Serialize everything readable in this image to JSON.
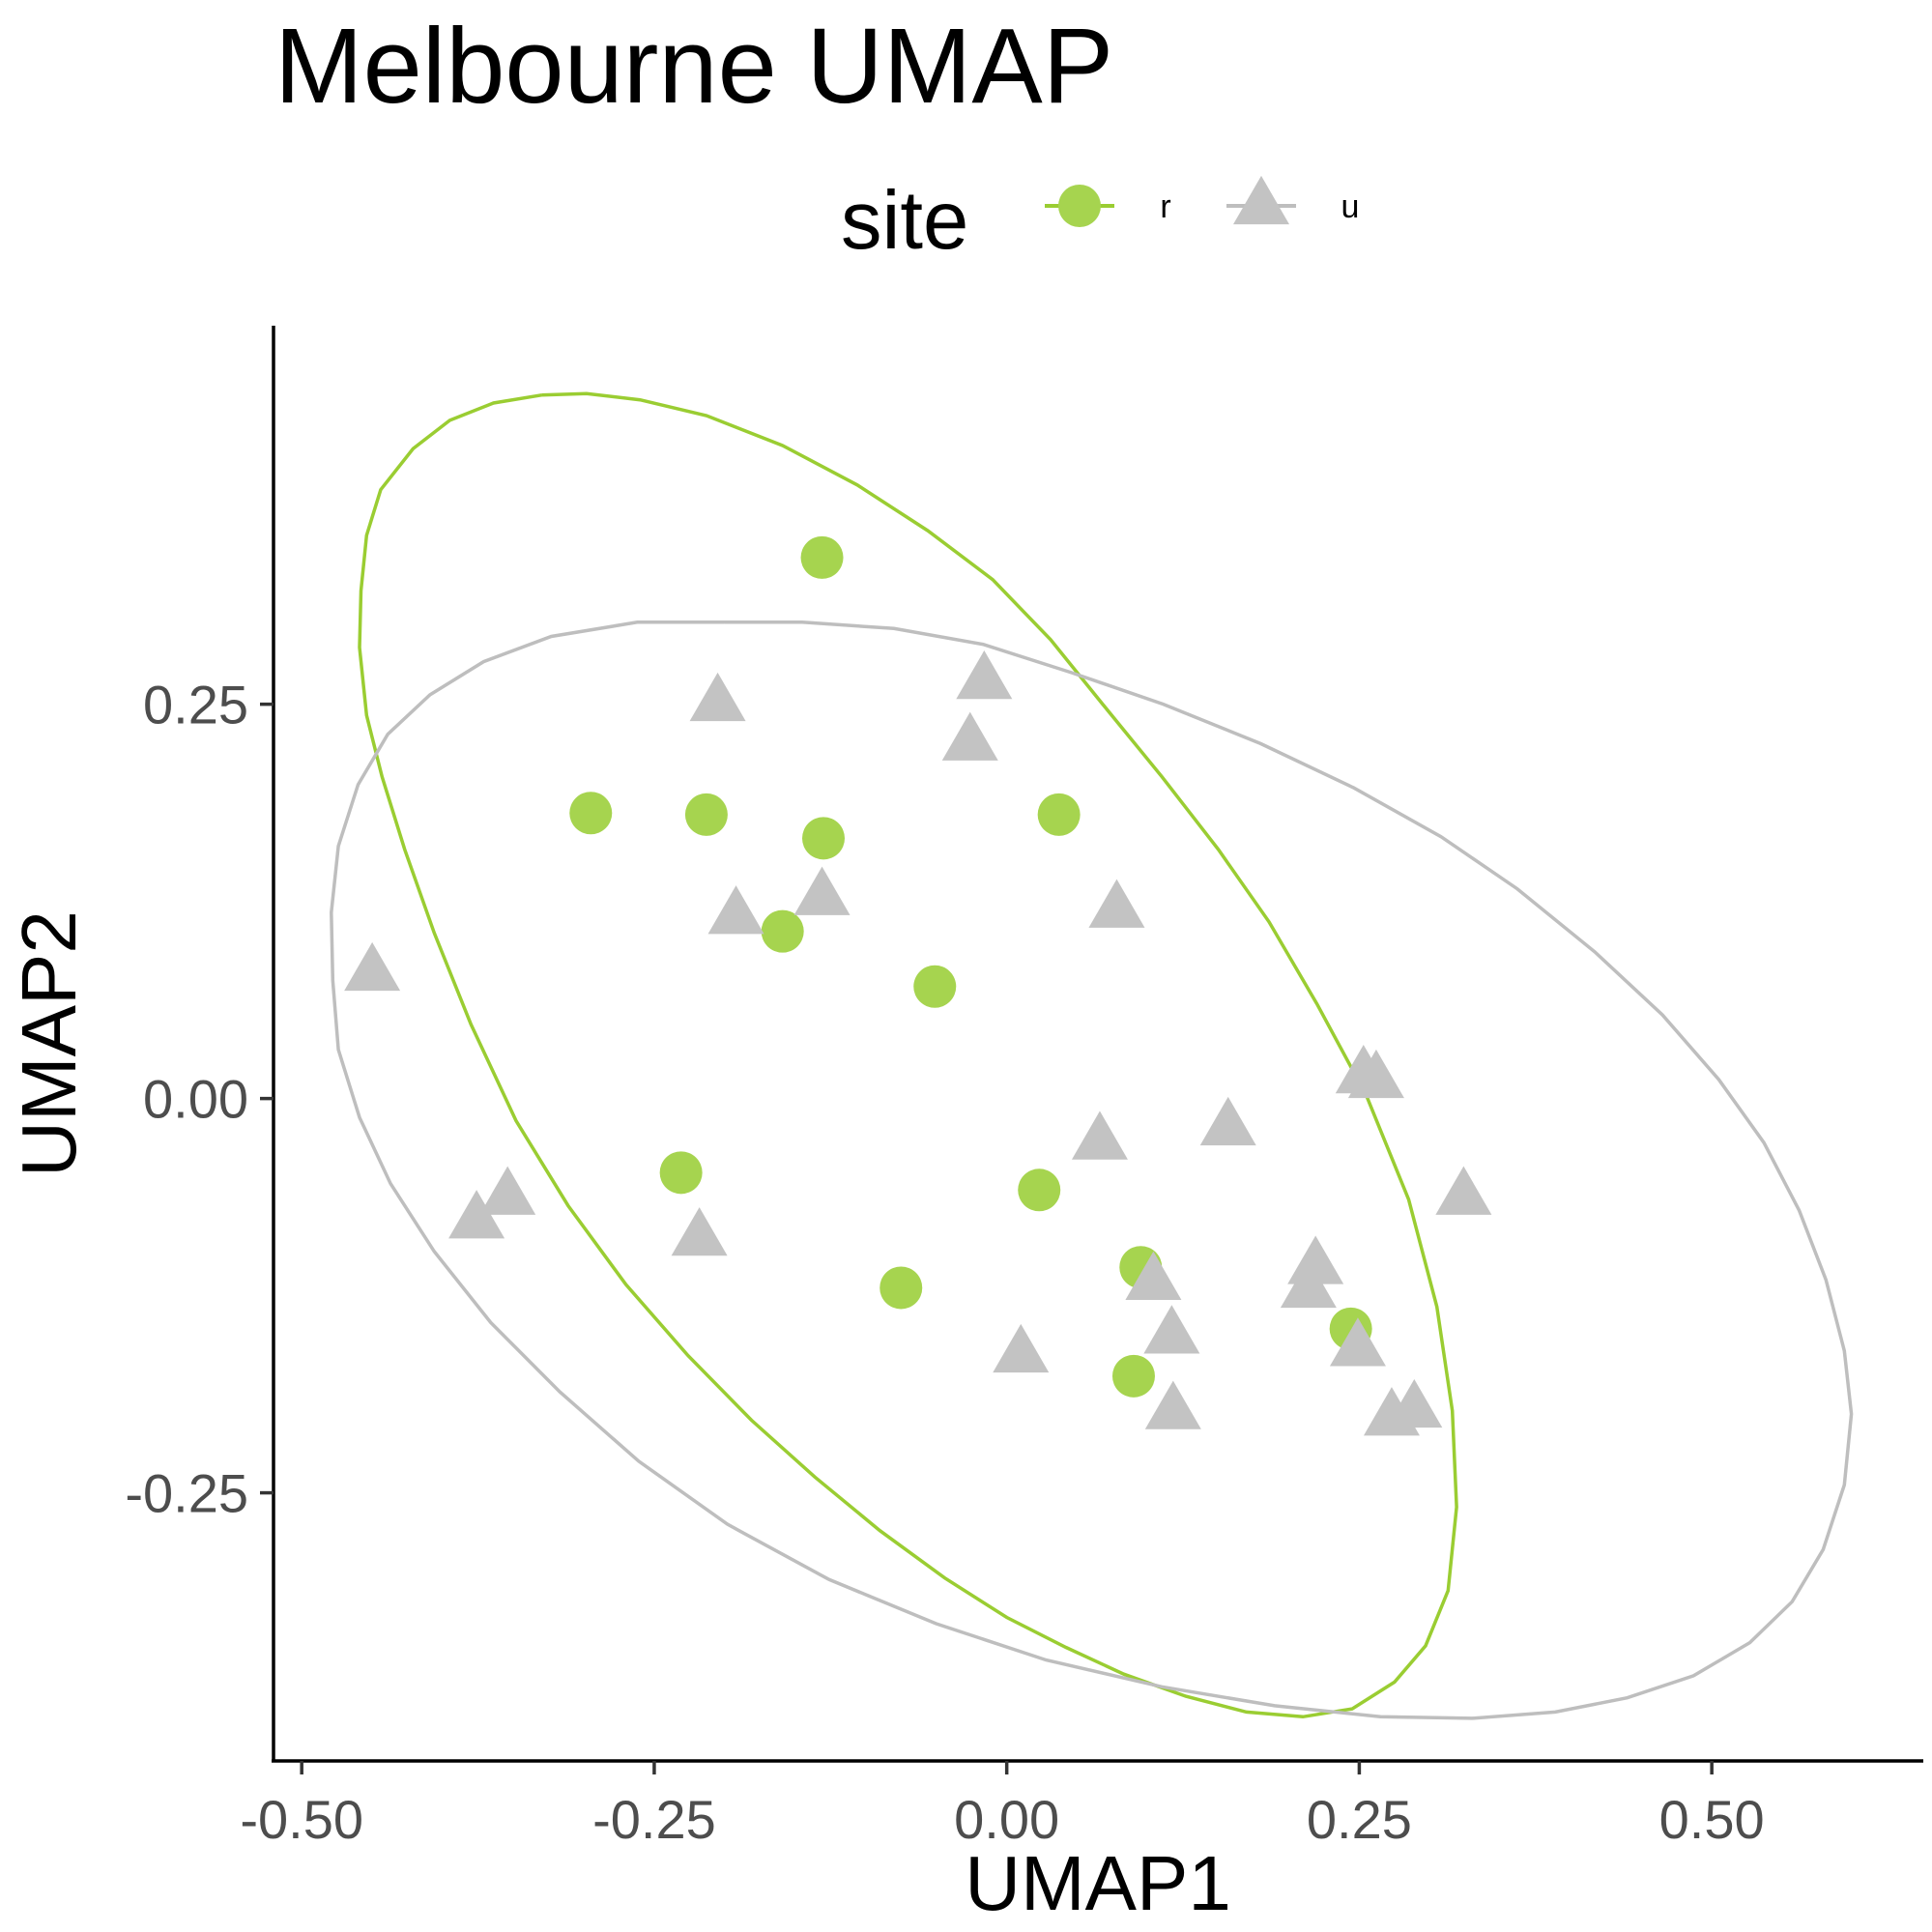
{
  "chart_data": {
    "type": "scatter",
    "title": "Melbourne UMAP",
    "xlabel": "UMAP1",
    "ylabel": "UMAP2",
    "xlim": [
      -0.52,
      0.65
    ],
    "ylim": [
      -0.42,
      0.49
    ],
    "x_ticks": [
      -0.5,
      -0.25,
      0.0,
      0.25,
      0.5
    ],
    "x_tick_labels": [
      "-0.50",
      "-0.25",
      "0.00",
      "0.25",
      "0.50"
    ],
    "y_ticks": [
      -0.25,
      0.0,
      0.25
    ],
    "y_tick_labels": [
      "-0.25",
      "0.00",
      "0.25"
    ],
    "grid": false,
    "legend": {
      "title": "site",
      "placement": "top"
    },
    "series": [
      {
        "name": "r",
        "shape": "circle",
        "color": "#a6d44f",
        "ellipse_color": "#9acd32",
        "points": [
          [
            -0.131,
            0.343
          ],
          [
            -0.295,
            0.181
          ],
          [
            -0.213,
            0.18
          ],
          [
            -0.13,
            0.165
          ],
          [
            0.037,
            0.18
          ],
          [
            -0.159,
            0.106
          ],
          [
            -0.051,
            0.071
          ],
          [
            -0.231,
            -0.047
          ],
          [
            0.023,
            -0.058
          ],
          [
            -0.075,
            -0.12
          ],
          [
            0.095,
            -0.107
          ],
          [
            0.244,
            -0.146
          ],
          [
            0.09,
            -0.176
          ]
        ],
        "ellipse": [
          [
            -0.33,
            0.446
          ],
          [
            -0.298,
            0.447
          ],
          [
            -0.26,
            0.443
          ],
          [
            -0.213,
            0.433
          ],
          [
            -0.159,
            0.414
          ],
          [
            -0.106,
            0.389
          ],
          [
            -0.056,
            0.36
          ],
          [
            -0.01,
            0.329
          ],
          [
            0.031,
            0.291
          ],
          [
            0.068,
            0.25
          ],
          [
            0.11,
            0.204
          ],
          [
            0.15,
            0.158
          ],
          [
            0.186,
            0.112
          ],
          [
            0.22,
            0.06
          ],
          [
            0.255,
            0.002
          ],
          [
            0.285,
            -0.064
          ],
          [
            0.305,
            -0.132
          ],
          [
            0.316,
            -0.198
          ],
          [
            0.319,
            -0.259
          ],
          [
            0.313,
            -0.312
          ],
          [
            0.297,
            -0.347
          ],
          [
            0.275,
            -0.37
          ],
          [
            0.245,
            -0.387
          ],
          [
            0.21,
            -0.392
          ],
          [
            0.17,
            -0.389
          ],
          [
            0.127,
            -0.379
          ],
          [
            0.083,
            -0.365
          ],
          [
            0.042,
            -0.348
          ],
          [
            0.0,
            -0.329
          ],
          [
            -0.044,
            -0.304
          ],
          [
            -0.09,
            -0.274
          ],
          [
            -0.136,
            -0.24
          ],
          [
            -0.181,
            -0.204
          ],
          [
            -0.226,
            -0.163
          ],
          [
            -0.27,
            -0.118
          ],
          [
            -0.311,
            -0.068
          ],
          [
            -0.348,
            -0.014
          ],
          [
            -0.38,
            0.047
          ],
          [
            -0.406,
            0.105
          ],
          [
            -0.427,
            0.158
          ],
          [
            -0.443,
            0.204
          ],
          [
            -0.454,
            0.243
          ],
          [
            -0.459,
            0.286
          ],
          [
            -0.458,
            0.322
          ],
          [
            -0.454,
            0.357
          ],
          [
            -0.444,
            0.386
          ],
          [
            -0.421,
            0.412
          ],
          [
            -0.395,
            0.43
          ],
          [
            -0.364,
            0.441
          ],
          [
            -0.33,
            0.446
          ]
        ]
      },
      {
        "name": "u",
        "shape": "triangle",
        "color": "#c3c3c3",
        "ellipse_color": "#bebebe",
        "points": [
          [
            -0.205,
            0.251
          ],
          [
            -0.016,
            0.265
          ],
          [
            -0.026,
            0.226
          ],
          [
            -0.192,
            0.116
          ],
          [
            -0.131,
            0.128
          ],
          [
            0.078,
            0.12
          ],
          [
            -0.45,
            0.08
          ],
          [
            0.253,
            0.015
          ],
          [
            0.262,
            0.012
          ],
          [
            0.157,
            -0.018
          ],
          [
            0.066,
            -0.027
          ],
          [
            0.324,
            -0.062
          ],
          [
            -0.354,
            -0.062
          ],
          [
            -0.376,
            -0.077
          ],
          [
            -0.218,
            -0.088
          ],
          [
            0.219,
            -0.106
          ],
          [
            0.104,
            -0.116
          ],
          [
            0.214,
            -0.121
          ],
          [
            0.117,
            -0.15
          ],
          [
            0.249,
            -0.158
          ],
          [
            0.01,
            -0.162
          ],
          [
            0.118,
            -0.198
          ],
          [
            0.273,
            -0.202
          ],
          [
            0.289,
            -0.197
          ]
        ],
        "ellipse": [
          [
            -0.2,
            0.302
          ],
          [
            -0.145,
            0.302
          ],
          [
            -0.08,
            0.298
          ],
          [
            -0.017,
            0.288
          ],
          [
            0.046,
            0.27
          ],
          [
            0.111,
            0.25
          ],
          [
            0.18,
            0.225
          ],
          [
            0.246,
            0.197
          ],
          [
            0.308,
            0.166
          ],
          [
            0.362,
            0.133
          ],
          [
            0.417,
            0.093
          ],
          [
            0.465,
            0.053
          ],
          [
            0.505,
            0.012
          ],
          [
            0.537,
            -0.028
          ],
          [
            0.562,
            -0.071
          ],
          [
            0.581,
            -0.115
          ],
          [
            0.594,
            -0.16
          ],
          [
            0.599,
            -0.2
          ],
          [
            0.594,
            -0.245
          ],
          [
            0.579,
            -0.286
          ],
          [
            0.557,
            -0.319
          ],
          [
            0.527,
            -0.345
          ],
          [
            0.487,
            -0.366
          ],
          [
            0.44,
            -0.38
          ],
          [
            0.389,
            -0.389
          ],
          [
            0.33,
            -0.393
          ],
          [
            0.265,
            -0.392
          ],
          [
            0.19,
            -0.385
          ],
          [
            0.11,
            -0.373
          ],
          [
            0.028,
            -0.356
          ],
          [
            -0.05,
            -0.333
          ],
          [
            -0.126,
            -0.305
          ],
          [
            -0.198,
            -0.27
          ],
          [
            -0.261,
            -0.23
          ],
          [
            -0.317,
            -0.186
          ],
          [
            -0.366,
            -0.142
          ],
          [
            -0.406,
            -0.097
          ],
          [
            -0.437,
            -0.054
          ],
          [
            -0.459,
            -0.012
          ],
          [
            -0.474,
            0.031
          ],
          [
            -0.478,
            0.075
          ],
          [
            -0.479,
            0.118
          ],
          [
            -0.474,
            0.16
          ],
          [
            -0.46,
            0.199
          ],
          [
            -0.439,
            0.231
          ],
          [
            -0.409,
            0.256
          ],
          [
            -0.371,
            0.277
          ],
          [
            -0.323,
            0.293
          ],
          [
            -0.262,
            0.302
          ],
          [
            -0.2,
            0.302
          ]
        ]
      }
    ]
  }
}
